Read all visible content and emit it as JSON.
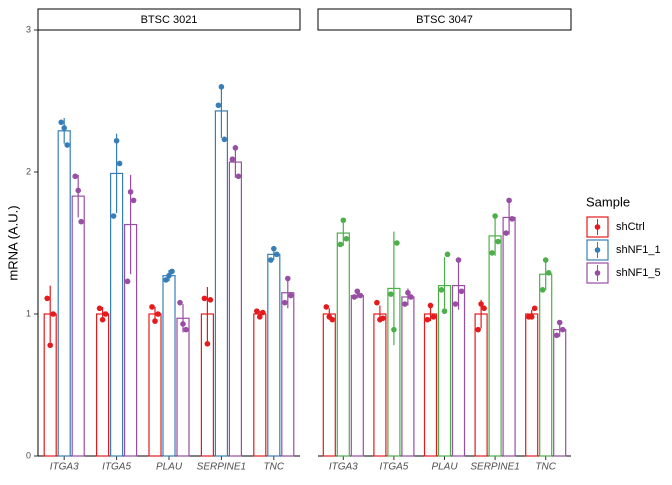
{
  "chart_data": [
    {
      "type": "bar",
      "title": "BTSC 3021",
      "y_label": "mRNA (A.U.)",
      "legend_title": "Sample",
      "categories": [
        "ITGA3",
        "ITGA5",
        "PLAU",
        "SERPINE1",
        "TNC"
      ],
      "ylim": [
        0,
        3
      ],
      "yticks": [
        0,
        1,
        2,
        3
      ],
      "series": [
        {
          "name": "shCtrl",
          "color": "#e41a1c",
          "values": [
            1.0,
            1.0,
            1.0,
            1.0,
            1.0
          ],
          "errors": [
            0.2,
            0.05,
            0.05,
            0.19,
            0.02
          ],
          "points": [
            [
              1.11,
              0.78,
              1.0
            ],
            [
              1.04,
              0.96,
              1.0
            ],
            [
              1.05,
              0.95,
              1.0
            ],
            [
              1.11,
              0.79,
              1.1
            ],
            [
              1.02,
              0.98,
              1.01
            ]
          ]
        },
        {
          "name": "shNF1_1",
          "color": "#377eb8",
          "values": [
            2.29,
            1.99,
            1.27,
            2.43,
            1.42
          ],
          "errors": [
            0.09,
            0.28,
            0.04,
            0.19,
            0.04
          ],
          "points": [
            [
              2.35,
              2.31,
              2.19
            ],
            [
              1.69,
              2.22,
              2.06
            ],
            [
              1.24,
              1.27,
              1.3
            ],
            [
              2.47,
              2.6,
              2.23
            ],
            [
              1.38,
              1.46,
              1.42
            ]
          ]
        },
        {
          "name": "shNF1_5",
          "color": "#984ea3",
          "values": [
            1.83,
            1.63,
            0.97,
            2.07,
            1.15
          ],
          "errors": [
            0.15,
            0.35,
            0.1,
            0.11,
            0.11
          ],
          "points": [
            [
              1.97,
              1.87,
              1.65
            ],
            [
              1.23,
              1.86,
              1.8
            ],
            [
              1.08,
              0.93,
              0.89
            ],
            [
              2.09,
              2.17,
              1.97
            ],
            [
              1.08,
              1.25,
              1.13
            ]
          ]
        }
      ]
    },
    {
      "type": "bar",
      "title": "BTSC 3047",
      "categories": [
        "ITGA3",
        "ITGA5",
        "PLAU",
        "SERPINE1",
        "TNC"
      ],
      "ylim": [
        0,
        3
      ],
      "series": [
        {
          "name": "shCtrl",
          "color": "#e41a1c",
          "values": [
            1.0,
            1.0,
            1.0,
            1.0,
            1.0
          ],
          "errors": [
            0.04,
            0.06,
            0.05,
            0.1,
            0.03
          ],
          "points": [
            [
              1.05,
              0.98,
              0.96
            ],
            [
              1.08,
              0.96,
              0.97
            ],
            [
              0.96,
              1.06,
              0.98
            ],
            [
              0.89,
              1.07,
              1.04
            ],
            [
              0.98,
              0.98,
              1.04
            ]
          ]
        },
        {
          "name": "shNF1_1",
          "color": "#4daf4a",
          "values": [
            1.57,
            1.18,
            1.2,
            1.55,
            1.28
          ],
          "errors": [
            0.09,
            0.4,
            0.2,
            0.14,
            0.11
          ],
          "points": [
            [
              1.49,
              1.66,
              1.53
            ],
            [
              1.14,
              0.89,
              1.5
            ],
            [
              1.17,
              1.02,
              1.42
            ],
            [
              1.43,
              1.69,
              1.51
            ],
            [
              1.17,
              1.38,
              1.29
            ]
          ]
        },
        {
          "name": "shNF1_5",
          "color": "#984ea3",
          "values": [
            1.13,
            1.12,
            1.2,
            1.68,
            0.89
          ],
          "errors": [
            0.02,
            0.06,
            0.17,
            0.12,
            0.05
          ],
          "points": [
            [
              1.12,
              1.16,
              1.13
            ],
            [
              1.07,
              1.15,
              1.12
            ],
            [
              1.07,
              1.38,
              1.16
            ],
            [
              1.57,
              1.8,
              1.67
            ],
            [
              0.85,
              0.94,
              0.89
            ]
          ]
        }
      ]
    }
  ]
}
